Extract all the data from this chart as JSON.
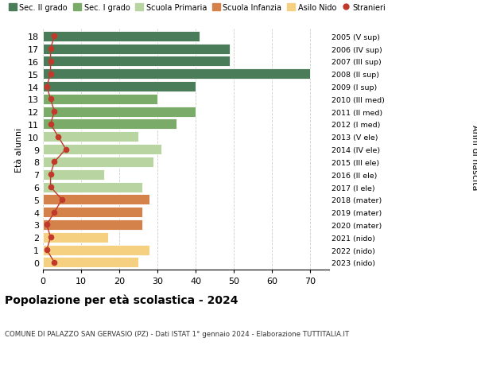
{
  "ages": [
    18,
    17,
    16,
    15,
    14,
    13,
    12,
    11,
    10,
    9,
    8,
    7,
    6,
    5,
    4,
    3,
    2,
    1,
    0
  ],
  "years": [
    "2005 (V sup)",
    "2006 (IV sup)",
    "2007 (III sup)",
    "2008 (II sup)",
    "2009 (I sup)",
    "2010 (III med)",
    "2011 (II med)",
    "2012 (I med)",
    "2013 (V ele)",
    "2014 (IV ele)",
    "2015 (III ele)",
    "2016 (II ele)",
    "2017 (I ele)",
    "2018 (mater)",
    "2019 (mater)",
    "2020 (mater)",
    "2021 (nido)",
    "2022 (nido)",
    "2023 (nido)"
  ],
  "bar_values": [
    41,
    49,
    49,
    70,
    40,
    30,
    40,
    35,
    25,
    31,
    29,
    16,
    26,
    28,
    26,
    26,
    17,
    28,
    25
  ],
  "bar_colors": [
    "#4a7c59",
    "#4a7c59",
    "#4a7c59",
    "#4a7c59",
    "#4a7c59",
    "#7aab68",
    "#7aab68",
    "#7aab68",
    "#b8d4a0",
    "#b8d4a0",
    "#b8d4a0",
    "#b8d4a0",
    "#b8d4a0",
    "#d4824a",
    "#d4824a",
    "#d4824a",
    "#f5d080",
    "#f5d080",
    "#f5d080"
  ],
  "stranieri_values": [
    3,
    2,
    2,
    2,
    1,
    2,
    3,
    2,
    4,
    6,
    3,
    2,
    2,
    5,
    3,
    1,
    2,
    1,
    3
  ],
  "stranieri_color": "#c0392b",
  "legend_labels": [
    "Sec. II grado",
    "Sec. I grado",
    "Scuola Primaria",
    "Scuola Infanzia",
    "Asilo Nido",
    "Stranieri"
  ],
  "legend_colors": [
    "#4a7c59",
    "#7aab68",
    "#b8d4a0",
    "#d4824a",
    "#f5d080",
    "#c0392b"
  ],
  "legend_markers": [
    "s",
    "s",
    "s",
    "s",
    "s",
    "o"
  ],
  "ylabel_left": "Età alunni",
  "ylabel_right": "Anni di nascita",
  "title": "Popolazione per età scolastica - 2024",
  "subtitle": "COMUNE DI PALAZZO SAN GERVASIO (PZ) - Dati ISTAT 1° gennaio 2024 - Elaborazione TUTTITALIA.IT",
  "xlim": [
    0,
    75
  ],
  "xticks": [
    0,
    10,
    20,
    30,
    40,
    50,
    60,
    70
  ],
  "background_color": "#ffffff",
  "grid_color": "#cccccc"
}
